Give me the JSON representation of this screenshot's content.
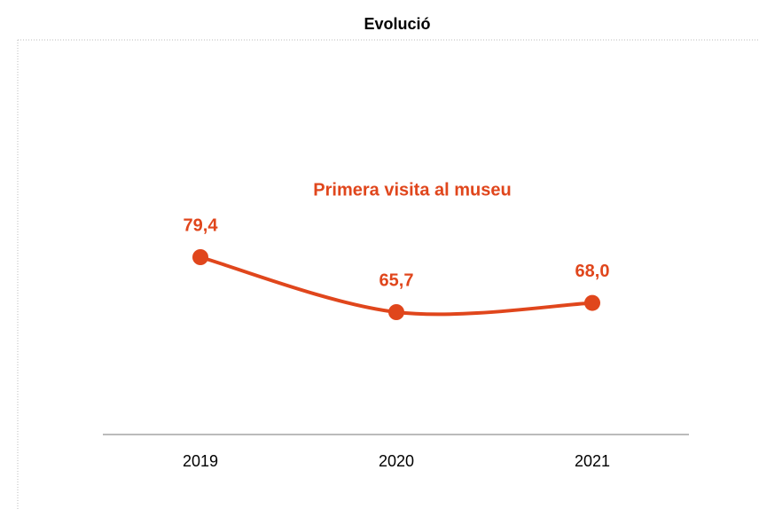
{
  "chart_data": {
    "type": "line",
    "title": "Evolució",
    "categories": [
      "2019",
      "2020",
      "2021"
    ],
    "series": [
      {
        "name": "Primera visita al museu",
        "color": "#e0461c",
        "values": [
          79.4,
          65.7,
          68.0
        ],
        "value_labels": [
          "79,4",
          "65,7",
          "68,0"
        ]
      }
    ]
  }
}
